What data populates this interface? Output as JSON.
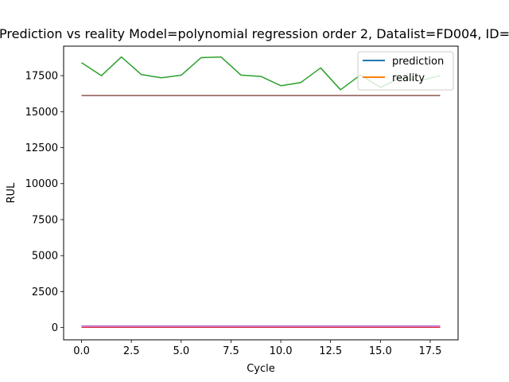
{
  "chart_data": {
    "type": "line",
    "title": "Prediction vs reality Model=polynomial regression order 2, Datalist=FD004, ID=",
    "xlabel": "Cycle",
    "ylabel": "RUL",
    "xlim": [
      -0.9,
      18.9
    ],
    "ylim": [
      -850,
      19550
    ],
    "x_ticks": [
      0.0,
      2.5,
      5.0,
      7.5,
      10.0,
      12.5,
      15.0,
      17.5
    ],
    "x_tick_labels": [
      "0.0",
      "2.5",
      "5.0",
      "7.5",
      "10.0",
      "12.5",
      "15.0",
      "17.5"
    ],
    "y_ticks": [
      0,
      2500,
      5000,
      7500,
      10000,
      12500,
      15000,
      17500
    ],
    "y_tick_labels": [
      "0",
      "2500",
      "5000",
      "7500",
      "10000",
      "12500",
      "15000",
      "17500"
    ],
    "grid": false,
    "legend": {
      "placement": "top-right",
      "entries": [
        {
          "name": "prediction",
          "color": "#1f77b4"
        },
        {
          "name": "reality",
          "color": "#ff7f0e"
        }
      ]
    },
    "x": [
      0,
      1,
      2,
      3,
      4,
      5,
      6,
      7,
      8,
      9,
      10,
      11,
      12,
      13,
      14,
      15,
      16,
      17,
      18
    ],
    "series": [
      {
        "color": "#1f77b4",
        "values": [
          60,
          60,
          60,
          60,
          60,
          60,
          60,
          60,
          60,
          60,
          60,
          60,
          60,
          60,
          60,
          60,
          60,
          60,
          60
        ]
      },
      {
        "color": "#ff7f0e",
        "values": [
          40,
          40,
          40,
          40,
          40,
          40,
          40,
          40,
          40,
          40,
          40,
          40,
          40,
          40,
          40,
          40,
          40,
          40,
          40
        ]
      },
      {
        "color": "#2ca02c",
        "values": [
          18400,
          17500,
          18800,
          17580,
          17350,
          17530,
          18750,
          18800,
          17540,
          17450,
          16800,
          17020,
          18040,
          16520,
          17550,
          16680,
          17350,
          17150,
          17500
        ]
      },
      {
        "color": "#d62728",
        "values": [
          20,
          20,
          20,
          20,
          20,
          20,
          20,
          20,
          20,
          20,
          20,
          20,
          20,
          20,
          20,
          20,
          20,
          20,
          20
        ]
      },
      {
        "color": "#9467bd",
        "values": [
          110,
          110,
          110,
          110,
          110,
          110,
          110,
          110,
          110,
          110,
          110,
          110,
          110,
          110,
          110,
          110,
          110,
          110,
          110
        ]
      },
      {
        "color": "#8c564b",
        "values": [
          16120,
          16120,
          16120,
          16120,
          16120,
          16120,
          16120,
          16120,
          16120,
          16120,
          16120,
          16120,
          16120,
          16120,
          16120,
          16120,
          16120,
          16120,
          16120
        ]
      },
      {
        "color": "#e377c2",
        "values": [
          70,
          70,
          70,
          70,
          70,
          70,
          70,
          70,
          70,
          70,
          70,
          70,
          70,
          70,
          70,
          70,
          70,
          70,
          70
        ]
      }
    ]
  }
}
